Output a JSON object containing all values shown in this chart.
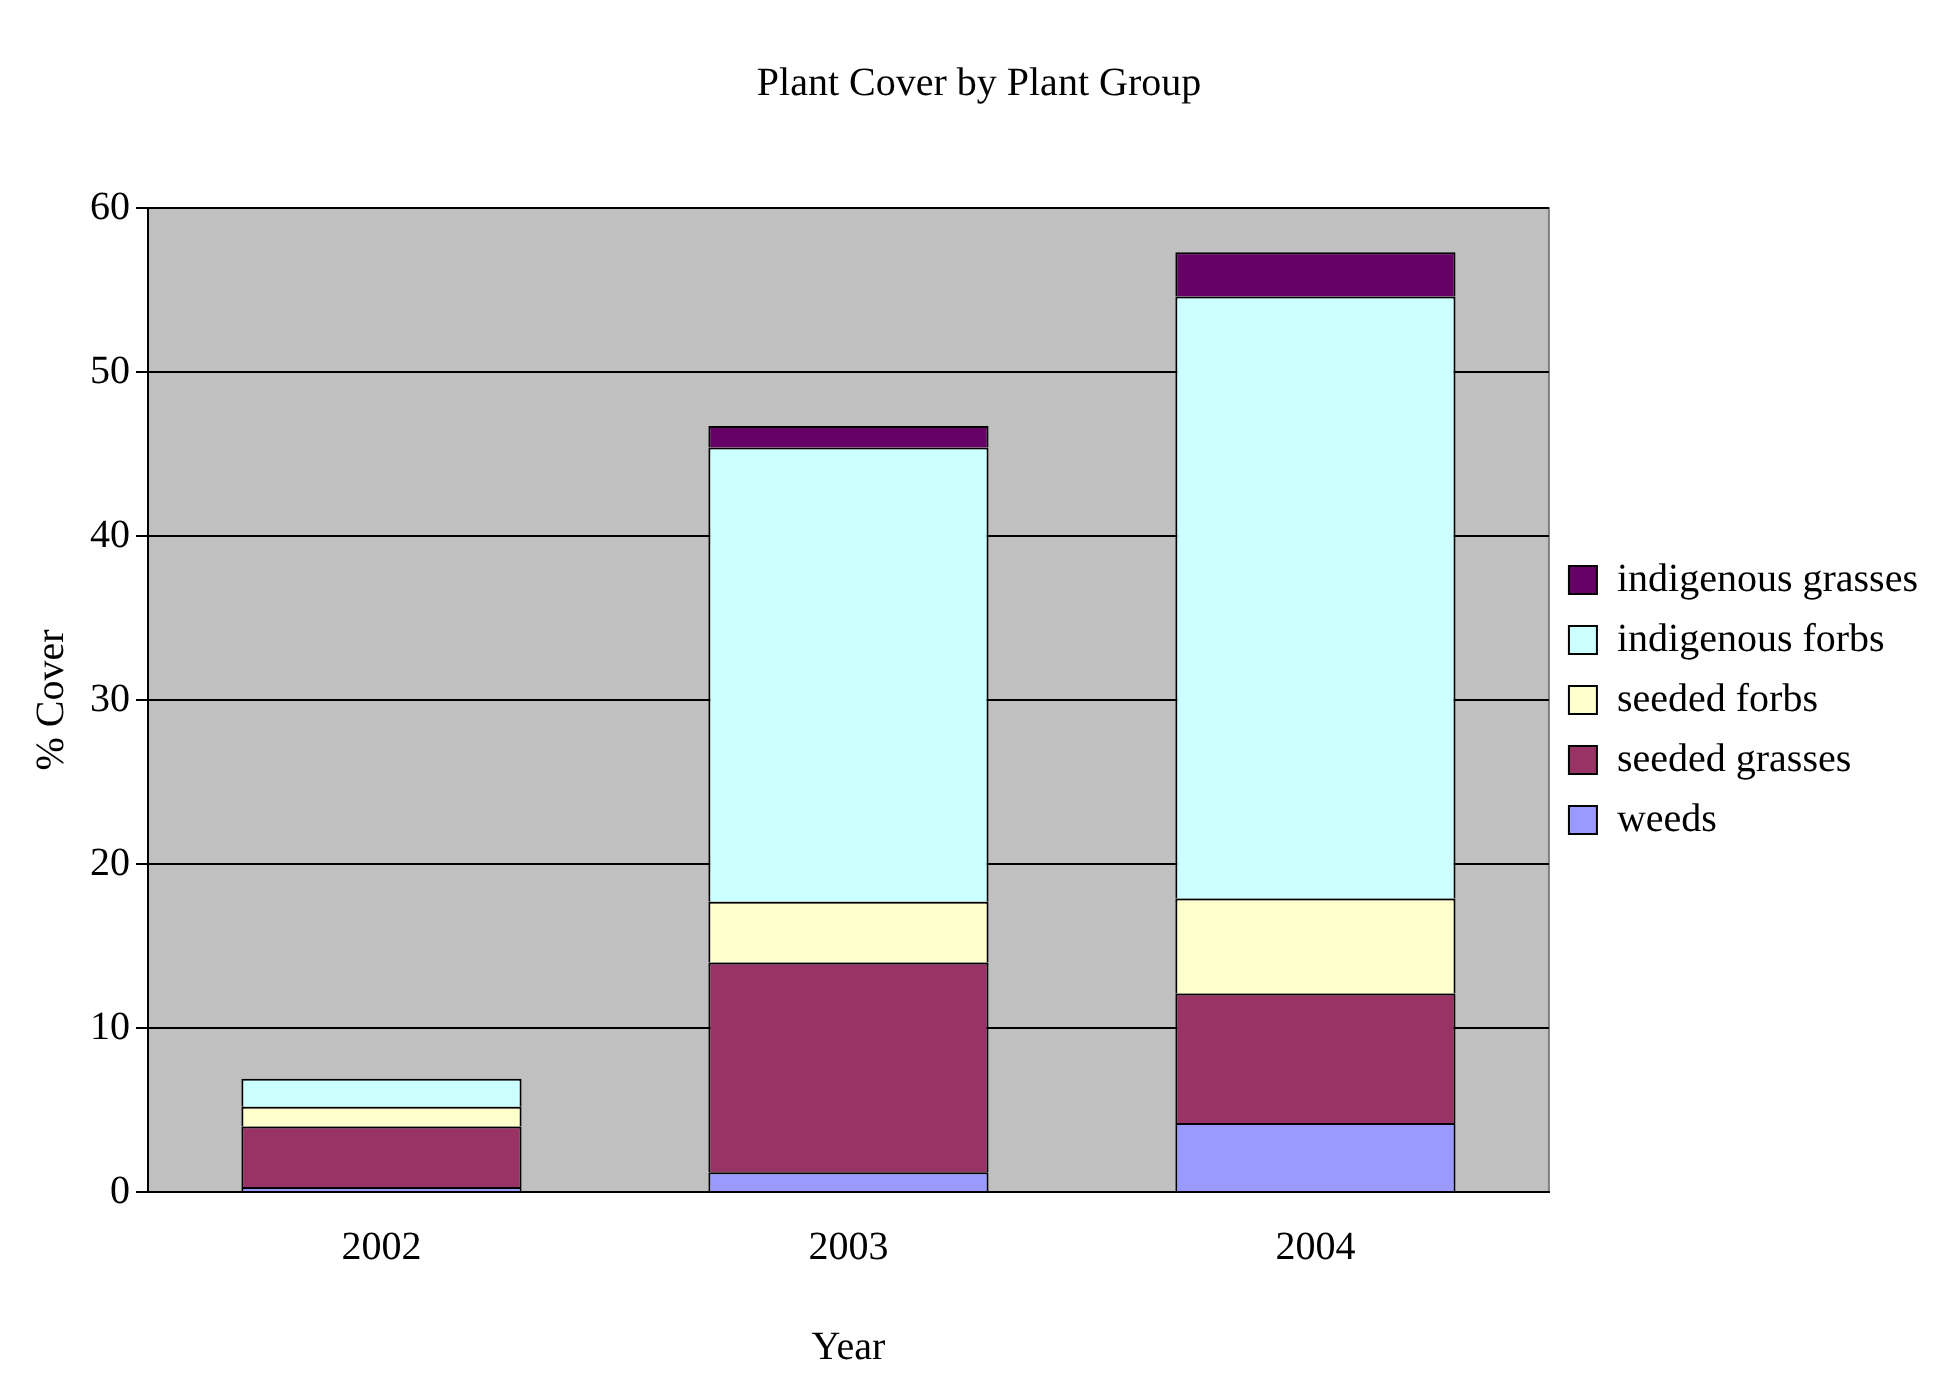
{
  "chart_data": {
    "type": "bar",
    "title": "Plant Cover by Plant Group",
    "xlabel": "Year",
    "ylabel": "% Cover",
    "categories": [
      "2002",
      "2003",
      "2004"
    ],
    "stacked": true,
    "ylim": [
      0,
      60
    ],
    "yticks": [
      0,
      10,
      20,
      30,
      40,
      50,
      60
    ],
    "grid": "y",
    "legend": "right",
    "series": [
      {
        "name": "weeds",
        "color": "#9999ff",
        "values": [
          0.3,
          1.2,
          4.2
        ]
      },
      {
        "name": "seeded grasses",
        "color": "#993366",
        "values": [
          3.7,
          12.8,
          7.9
        ]
      },
      {
        "name": "seeded forbs",
        "color": "#ffffcc",
        "values": [
          1.2,
          3.7,
          5.8
        ]
      },
      {
        "name": "indigenous forbs",
        "color": "#ccffff",
        "values": [
          1.7,
          27.7,
          36.7
        ]
      },
      {
        "name": "indigenous grasses",
        "color": "#660066",
        "values": [
          0,
          1.3,
          2.7
        ]
      }
    ]
  }
}
